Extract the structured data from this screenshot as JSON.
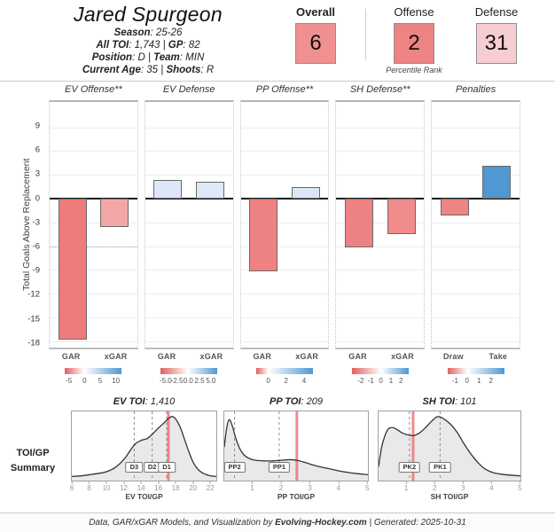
{
  "header": {
    "title": "Jared Spurgeon",
    "info_separator": " | ",
    "info_lines": [
      [
        {
          "label": "Season",
          "value": ": 25-26"
        }
      ],
      [
        {
          "label": "All TOI",
          "value": ": 1,743"
        },
        {
          "label": "GP",
          "value": ": 82"
        }
      ],
      [
        {
          "label": "Position",
          "value": ": D"
        },
        {
          "label": "Team",
          "value": ": MIN"
        }
      ],
      [
        {
          "label": "Current Age",
          "value": ": 35"
        },
        {
          "label": "Shoots",
          "value": ": R"
        }
      ]
    ],
    "percentiles": {
      "caption": "Percentile Rank",
      "boxes": [
        {
          "label": "Overall",
          "value": "6",
          "color": "#f09090",
          "label_bold": true
        },
        {
          "label": "Offense",
          "value": "2",
          "color": "#ed8383",
          "label_bold": false
        },
        {
          "label": "Defense",
          "value": "31",
          "color": "#f6cdd1",
          "label_bold": false
        }
      ]
    }
  },
  "toi_summary_label": [
    "TOI/GP",
    "Summary"
  ],
  "chart_data": [
    {
      "type": "bar",
      "ylabel": "Total Goals Above Replacement",
      "yticks": [
        9,
        6,
        3,
        0,
        -3,
        -6,
        -9,
        -12,
        -15,
        -18
      ],
      "ylim": [
        -18.8,
        12.2
      ],
      "grid": true,
      "panels": [
        {
          "title": "EV Offense**",
          "categories": [
            "GAR",
            "xGAR"
          ],
          "values": [
            -17.8,
            -3.6
          ],
          "bar_colors": [
            "#ee7b7b",
            "#f4a6a6"
          ],
          "ref_line": -6,
          "legend": {
            "min": -6.2,
            "max": 11.9,
            "tick_values": [
              -5,
              0,
              5,
              10
            ],
            "tick_labels": [
              "-5",
              "0",
              "5",
              "10"
            ]
          }
        },
        {
          "title": "EV Defense",
          "categories": [
            "GAR",
            "xGAR"
          ],
          "values": [
            2.3,
            2.1
          ],
          "bar_colors": [
            "#dce8f6",
            "#dde9f6"
          ],
          "legend": {
            "min": -6.1,
            "max": 6.45,
            "tick_values": [
              -5,
              -2.5,
              0,
              2.5,
              5
            ],
            "tick_labels": [
              "-5.0",
              "-2.5",
              "0.0",
              "2.5",
              "5.0"
            ]
          }
        },
        {
          "title": "PP Offense**",
          "categories": [
            "GAR",
            "xGAR"
          ],
          "values": [
            -9.2,
            1.5
          ],
          "bar_colors": [
            "#ee8282",
            "#dbe7f5"
          ],
          "legend": {
            "min": -1.35,
            "max": 5.0,
            "tick_values": [
              0,
              2,
              4
            ],
            "tick_labels": [
              "0",
              "2",
              "4"
            ]
          }
        },
        {
          "title": "SH Defense**",
          "categories": [
            "GAR",
            "xGAR"
          ],
          "values": [
            -6.1,
            -4.5
          ],
          "bar_colors": [
            "#ee8282",
            "#f08c8c"
          ],
          "legend": {
            "min": -2.9,
            "max": 2.75,
            "tick_values": [
              -2,
              -1,
              0,
              1,
              2
            ],
            "tick_labels": [
              "-2",
              "-1",
              "0",
              "1",
              "2"
            ]
          }
        },
        {
          "title": "Penalties",
          "categories": [
            "Draw",
            "Take"
          ],
          "values": [
            -2.1,
            4.1
          ],
          "bar_colors": [
            "#ee8383",
            "#4f98d3"
          ],
          "legend": {
            "min": -1.65,
            "max": 3.1,
            "tick_values": [
              -1,
              0,
              1,
              2
            ],
            "tick_labels": [
              "-1",
              "0",
              "1",
              "2"
            ]
          }
        }
      ],
      "legend_red": "#e06060",
      "legend_blue": "#4f98d3"
    },
    {
      "type": "area",
      "title_label": "EV TOI",
      "title_value": ": 1,410",
      "xlabel": "EV TOI/GP",
      "xlim": [
        5.9,
        22.8
      ],
      "xticks": [
        6,
        8,
        10,
        12,
        14,
        16,
        18,
        20,
        22
      ],
      "player_value": 17.2,
      "role_lines": [
        {
          "label": "D3",
          "x": 13.2
        },
        {
          "label": "D2",
          "x": 15.3
        },
        {
          "label": "D1",
          "x": 17.0
        }
      ],
      "density": [
        [
          5.9,
          0.02
        ],
        [
          7,
          0.03
        ],
        [
          8,
          0.05
        ],
        [
          9,
          0.07
        ],
        [
          10,
          0.1
        ],
        [
          11,
          0.17
        ],
        [
          12,
          0.3
        ],
        [
          12.7,
          0.44
        ],
        [
          13.3,
          0.55
        ],
        [
          14,
          0.61
        ],
        [
          14.7,
          0.64
        ],
        [
          15.3,
          0.71
        ],
        [
          16,
          0.81
        ],
        [
          16.7,
          0.9
        ],
        [
          17.3,
          0.98
        ],
        [
          17.7,
          1.0
        ],
        [
          18.1,
          0.95
        ],
        [
          18.6,
          0.82
        ],
        [
          19.1,
          0.62
        ],
        [
          19.6,
          0.42
        ],
        [
          20.1,
          0.25
        ],
        [
          20.7,
          0.13
        ],
        [
          21.3,
          0.07
        ],
        [
          22,
          0.035
        ],
        [
          22.8,
          0.02
        ]
      ]
    },
    {
      "type": "area",
      "title_label": "PP TOI",
      "title_value": ": 209",
      "xlabel": "PP TOI/GP",
      "xlim": [
        0,
        5.05
      ],
      "xticks": [
        1,
        2,
        3,
        4,
        5
      ],
      "player_value": 2.55,
      "role_lines": [
        {
          "label": "PP2",
          "x": 0.36
        },
        {
          "label": "PP1",
          "x": 1.93
        }
      ],
      "density": [
        [
          0,
          0.5
        ],
        [
          0.08,
          0.8
        ],
        [
          0.17,
          0.95
        ],
        [
          0.28,
          0.85
        ],
        [
          0.4,
          0.65
        ],
        [
          0.55,
          0.47
        ],
        [
          0.7,
          0.37
        ],
        [
          0.9,
          0.31
        ],
        [
          1.1,
          0.285
        ],
        [
          1.4,
          0.275
        ],
        [
          1.7,
          0.275
        ],
        [
          2.0,
          0.285
        ],
        [
          2.3,
          0.295
        ],
        [
          2.55,
          0.285
        ],
        [
          2.8,
          0.255
        ],
        [
          3.1,
          0.21
        ],
        [
          3.4,
          0.175
        ],
        [
          3.7,
          0.145
        ],
        [
          4.0,
          0.115
        ],
        [
          4.3,
          0.09
        ],
        [
          4.6,
          0.07
        ],
        [
          5.05,
          0.05
        ]
      ]
    },
    {
      "type": "area",
      "title_label": "SH TOI",
      "title_value": ": 101",
      "xlabel": "SH TOI/GP",
      "xlim": [
        0,
        5.05
      ],
      "xticks": [
        1,
        2,
        3,
        4,
        5
      ],
      "player_value": 1.23,
      "role_lines": [
        {
          "label": "PK2",
          "x": 1.1
        },
        {
          "label": "PK1",
          "x": 2.19
        }
      ],
      "density": [
        [
          0,
          0.18
        ],
        [
          0.1,
          0.48
        ],
        [
          0.22,
          0.68
        ],
        [
          0.35,
          0.8
        ],
        [
          0.5,
          0.82
        ],
        [
          0.65,
          0.79
        ],
        [
          0.85,
          0.73
        ],
        [
          1.05,
          0.7
        ],
        [
          1.25,
          0.69
        ],
        [
          1.45,
          0.73
        ],
        [
          1.65,
          0.81
        ],
        [
          1.9,
          0.93
        ],
        [
          2.1,
          1.0
        ],
        [
          2.3,
          0.97
        ],
        [
          2.55,
          0.88
        ],
        [
          2.8,
          0.74
        ],
        [
          3.05,
          0.55
        ],
        [
          3.3,
          0.38
        ],
        [
          3.55,
          0.24
        ],
        [
          3.8,
          0.14
        ],
        [
          4.1,
          0.08
        ],
        [
          4.5,
          0.05
        ],
        [
          5.05,
          0.03
        ]
      ]
    }
  ],
  "styles": {
    "player_line_color": "#f26b6b",
    "density_fill": "#e9e9e9",
    "density_stroke": "#333333"
  },
  "footer": {
    "pre": "Data, GAR/xGAR Models, and Visualization by ",
    "site": "Evolving-Hockey.com",
    "post": " | Generated: 2025-10-31"
  }
}
